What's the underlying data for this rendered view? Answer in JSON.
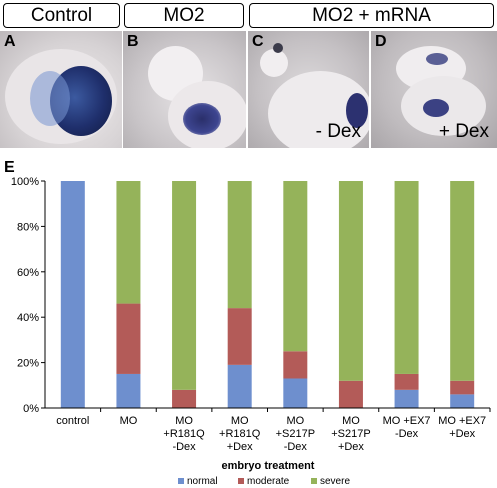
{
  "headers": [
    "Control",
    "MO2",
    "MO2 + mRNA"
  ],
  "panels": [
    {
      "letter": "A",
      "sub": ""
    },
    {
      "letter": "B",
      "sub": ""
    },
    {
      "letter": "C",
      "sub": "- Dex"
    },
    {
      "letter": "D",
      "sub": "+ Dex"
    }
  ],
  "chart_label": "E",
  "colors": {
    "normal": "#6e8fce",
    "moderate": "#b35b58",
    "severe": "#95b35a"
  },
  "chart_data": {
    "type": "bar",
    "stacked": true,
    "categories": [
      [
        "control"
      ],
      [
        "MO"
      ],
      [
        "MO",
        "+R181Q",
        "-Dex"
      ],
      [
        "MO",
        "+R181Q",
        "+Dex"
      ],
      [
        "MO",
        "+S217P",
        "-Dex"
      ],
      [
        "MO",
        "+S217P",
        "+Dex"
      ],
      [
        "MO +EX7",
        "-Dex"
      ],
      [
        "MO +EX7",
        "+Dex"
      ]
    ],
    "series": [
      {
        "name": "normal",
        "values": [
          100,
          15,
          0,
          19,
          13,
          0,
          8,
          6
        ]
      },
      {
        "name": "moderate",
        "values": [
          0,
          31,
          8,
          25,
          12,
          12,
          7,
          6
        ]
      },
      {
        "name": "severe",
        "values": [
          0,
          54,
          92,
          56,
          75,
          88,
          85,
          88
        ]
      }
    ],
    "y_ticks": [
      "0%",
      "20%",
      "40%",
      "60%",
      "80%",
      "100%"
    ],
    "ylim": [
      0,
      100
    ],
    "xlabel": "embryo treatment",
    "ylabel": "",
    "legend_position": "bottom"
  }
}
